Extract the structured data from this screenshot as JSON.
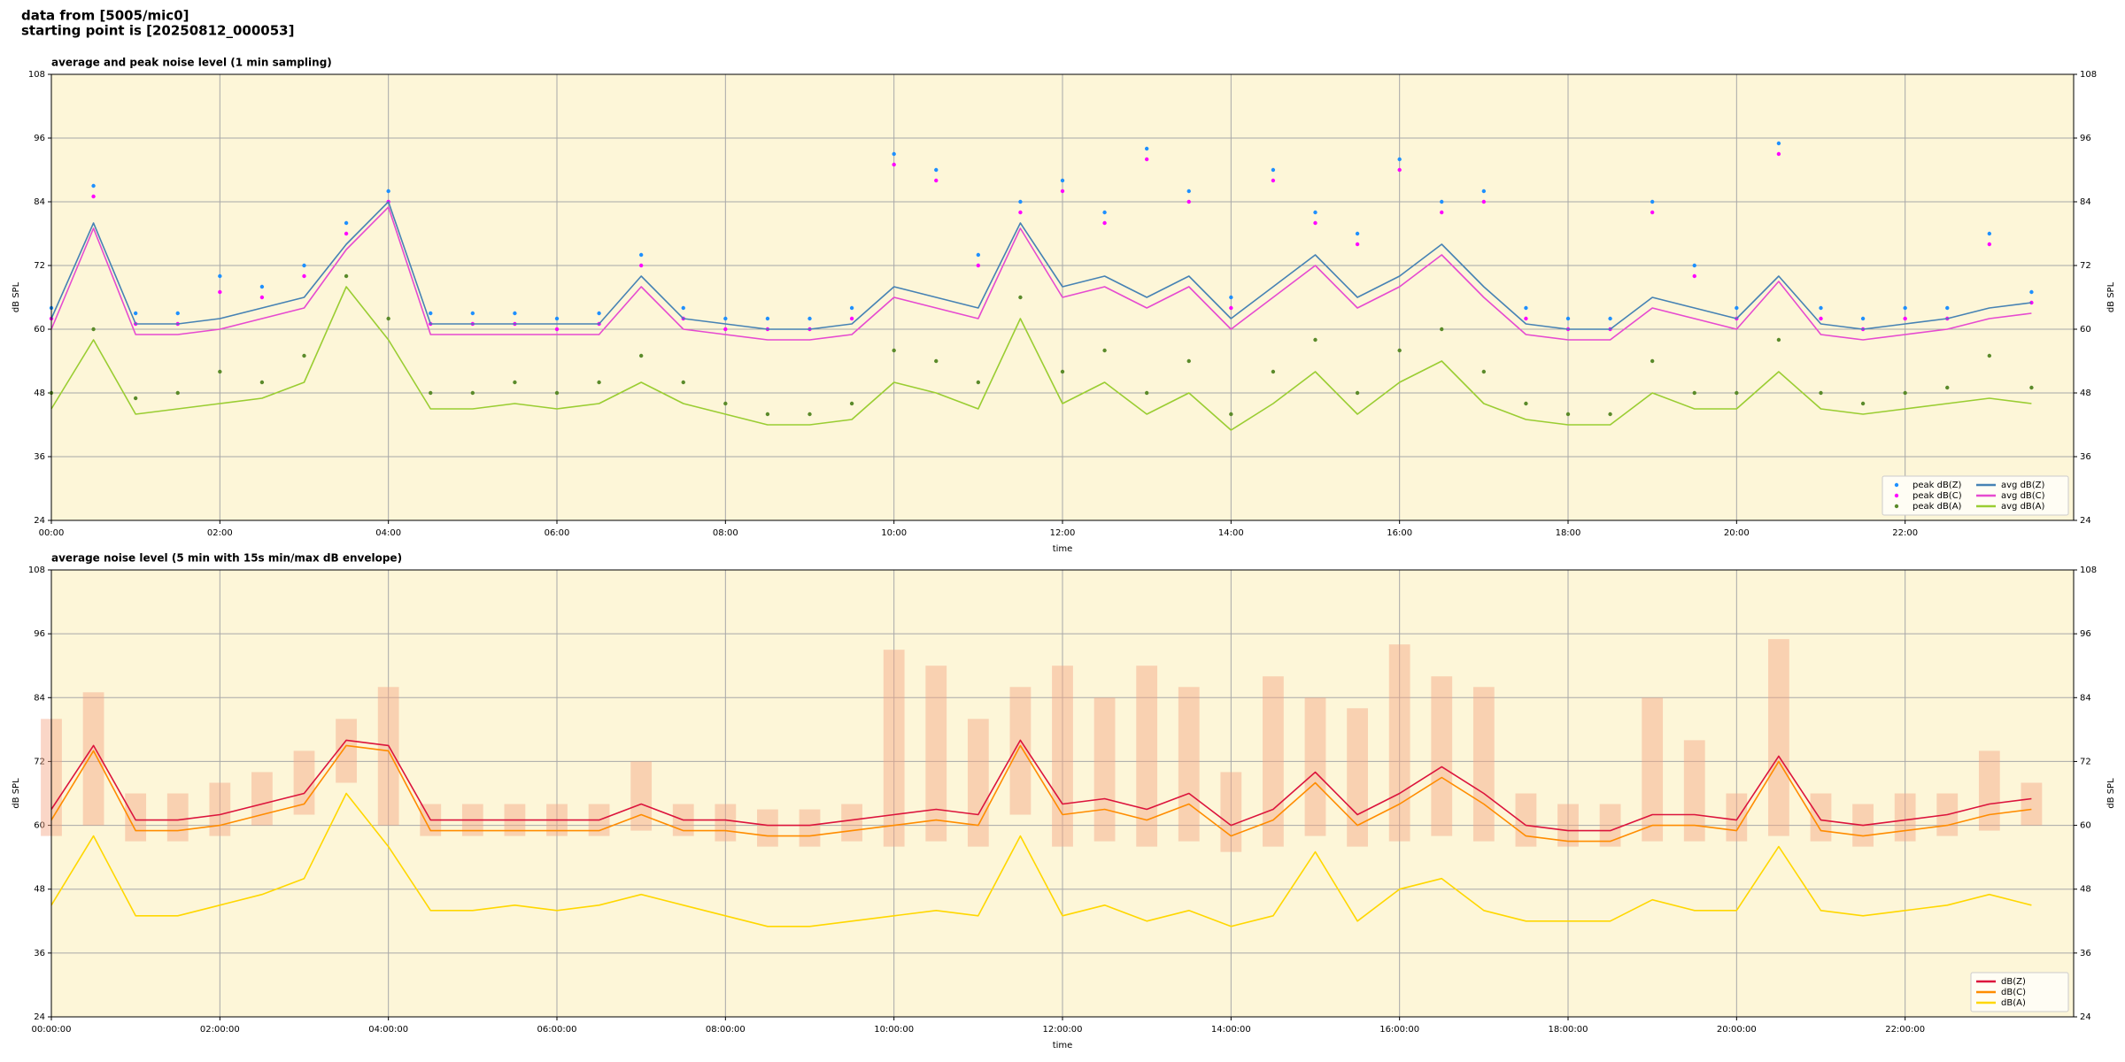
{
  "suptitle": [
    "data from [5005/mic0]",
    "starting point is [20250812_000053]"
  ],
  "chart_data": [
    {
      "type": "line",
      "title": "average and peak noise level (1 min sampling)",
      "x_label": "time",
      "y_label": "dB SPL",
      "xlim": [
        0,
        24
      ],
      "ylim": [
        24,
        108
      ],
      "grid": true,
      "legend": "lower right",
      "background": "#fdf6d8",
      "xticks": [
        {
          "value": 0,
          "label": "00:00"
        },
        {
          "value": 2,
          "label": "02:00"
        },
        {
          "value": 4,
          "label": "04:00"
        },
        {
          "value": 6,
          "label": "06:00"
        },
        {
          "value": 8,
          "label": "08:00"
        },
        {
          "value": 10,
          "label": "10:00"
        },
        {
          "value": 12,
          "label": "12:00"
        },
        {
          "value": 14,
          "label": "14:00"
        },
        {
          "value": 16,
          "label": "16:00"
        },
        {
          "value": 18,
          "label": "18:00"
        },
        {
          "value": 20,
          "label": "20:00"
        },
        {
          "value": 22,
          "label": "22:00"
        }
      ],
      "yticks": [
        24,
        36,
        48,
        60,
        72,
        84,
        96,
        108
      ],
      "x": [
        0,
        0.5,
        1,
        1.5,
        2,
        2.5,
        3,
        3.5,
        4,
        4.5,
        5,
        5.5,
        6,
        6.5,
        7,
        7.5,
        8,
        8.5,
        9,
        9.5,
        10,
        10.5,
        11,
        11.5,
        12,
        12.5,
        13,
        13.5,
        14,
        14.5,
        15,
        15.5,
        16,
        16.5,
        17,
        17.5,
        18,
        18.5,
        19,
        19.5,
        20,
        20.5,
        21,
        21.5,
        22,
        22.5,
        23,
        23.5
      ],
      "series": [
        {
          "name": "peak dB(Z)",
          "style": "scatter",
          "color": "#1e90ff",
          "values": [
            64,
            87,
            63,
            63,
            70,
            68,
            72,
            80,
            86,
            63,
            63,
            63,
            62,
            63,
            74,
            64,
            62,
            62,
            62,
            64,
            93,
            90,
            74,
            84,
            88,
            82,
            94,
            86,
            66,
            90,
            82,
            78,
            92,
            84,
            86,
            64,
            62,
            62,
            84,
            72,
            64,
            95,
            64,
            62,
            64,
            64,
            78,
            67
          ]
        },
        {
          "name": "peak dB(C)",
          "style": "scatter",
          "color": "#ff00ff",
          "values": [
            62,
            85,
            61,
            61,
            67,
            66,
            70,
            78,
            84,
            61,
            61,
            61,
            60,
            61,
            72,
            62,
            60,
            60,
            60,
            62,
            91,
            88,
            72,
            82,
            86,
            80,
            92,
            84,
            64,
            88,
            80,
            76,
            90,
            82,
            84,
            62,
            60,
            60,
            82,
            70,
            62,
            93,
            62,
            60,
            62,
            62,
            76,
            65
          ]
        },
        {
          "name": "peak dB(A)",
          "style": "scatter",
          "color": "#5a8a2a",
          "values": [
            48,
            60,
            47,
            48,
            52,
            50,
            55,
            70,
            62,
            48,
            48,
            50,
            48,
            50,
            55,
            50,
            46,
            44,
            44,
            46,
            56,
            54,
            50,
            66,
            52,
            56,
            48,
            54,
            44,
            52,
            58,
            48,
            56,
            60,
            52,
            46,
            44,
            44,
            54,
            48,
            48,
            58,
            48,
            46,
            48,
            49,
            55,
            49
          ]
        },
        {
          "name": "avg dB(Z)",
          "style": "line",
          "color": "#4682b4",
          "values": [
            62,
            80,
            61,
            61,
            62,
            64,
            66,
            76,
            84,
            61,
            61,
            61,
            61,
            61,
            70,
            62,
            61,
            60,
            60,
            61,
            68,
            66,
            64,
            80,
            68,
            70,
            66,
            70,
            62,
            68,
            74,
            66,
            70,
            76,
            68,
            61,
            60,
            60,
            66,
            64,
            62,
            70,
            61,
            60,
            61,
            62,
            64,
            65
          ]
        },
        {
          "name": "avg dB(C)",
          "style": "line",
          "color": "#e64ad0",
          "values": [
            60,
            79,
            59,
            59,
            60,
            62,
            64,
            75,
            83,
            59,
            59,
            59,
            59,
            59,
            68,
            60,
            59,
            58,
            58,
            59,
            66,
            64,
            62,
            79,
            66,
            68,
            64,
            68,
            60,
            66,
            72,
            64,
            68,
            74,
            66,
            59,
            58,
            58,
            64,
            62,
            60,
            69,
            59,
            58,
            59,
            60,
            62,
            63
          ]
        },
        {
          "name": "avg dB(A)",
          "style": "line",
          "color": "#9acd32",
          "values": [
            45,
            58,
            44,
            45,
            46,
            47,
            50,
            68,
            58,
            45,
            45,
            46,
            45,
            46,
            50,
            46,
            44,
            42,
            42,
            43,
            50,
            48,
            45,
            62,
            46,
            50,
            44,
            48,
            41,
            46,
            52,
            44,
            50,
            54,
            46,
            43,
            42,
            42,
            48,
            45,
            45,
            52,
            45,
            44,
            45,
            46,
            47,
            46
          ]
        }
      ]
    },
    {
      "type": "line",
      "title": "average noise level (5 min with 15s min/max dB envelope)",
      "x_label": "time",
      "y_label": "dB SPL",
      "xlim": [
        0,
        24
      ],
      "ylim": [
        24,
        108
      ],
      "grid": true,
      "legend": "lower right",
      "background": "#fdf6d8",
      "xticks": [
        {
          "value": 0,
          "label": "00:00:00"
        },
        {
          "value": 2,
          "label": "02:00:00"
        },
        {
          "value": 4,
          "label": "04:00:00"
        },
        {
          "value": 6,
          "label": "06:00:00"
        },
        {
          "value": 8,
          "label": "08:00:00"
        },
        {
          "value": 10,
          "label": "10:00:00"
        },
        {
          "value": 12,
          "label": "12:00:00"
        },
        {
          "value": 14,
          "label": "14:00:00"
        },
        {
          "value": 16,
          "label": "16:00:00"
        },
        {
          "value": 18,
          "label": "18:00:00"
        },
        {
          "value": 20,
          "label": "20:00:00"
        },
        {
          "value": 22,
          "label": "22:00:00"
        }
      ],
      "yticks": [
        24,
        36,
        48,
        60,
        72,
        84,
        96,
        108
      ],
      "x": [
        0,
        0.5,
        1,
        1.5,
        2,
        2.5,
        3,
        3.5,
        4,
        4.5,
        5,
        5.5,
        6,
        6.5,
        7,
        7.5,
        8,
        8.5,
        9,
        9.5,
        10,
        10.5,
        11,
        11.5,
        12,
        12.5,
        13,
        13.5,
        14,
        14.5,
        15,
        15.5,
        16,
        16.5,
        17,
        17.5,
        18,
        18.5,
        19,
        19.5,
        20,
        20.5,
        21,
        21.5,
        22,
        22.5,
        23,
        23.5
      ],
      "envelope": {
        "color": "#f4a582",
        "max": [
          80,
          85,
          66,
          66,
          68,
          70,
          74,
          80,
          86,
          64,
          64,
          64,
          64,
          64,
          72,
          64,
          64,
          63,
          63,
          64,
          93,
          90,
          80,
          86,
          90,
          84,
          90,
          86,
          70,
          88,
          84,
          82,
          94,
          88,
          86,
          66,
          64,
          64,
          84,
          76,
          66,
          95,
          66,
          64,
          66,
          66,
          74,
          68
        ],
        "min": [
          58,
          60,
          57,
          57,
          58,
          60,
          62,
          68,
          60,
          58,
          58,
          58,
          58,
          58,
          59,
          58,
          57,
          56,
          56,
          57,
          56,
          57,
          56,
          62,
          56,
          57,
          56,
          57,
          55,
          56,
          58,
          56,
          57,
          58,
          57,
          56,
          56,
          56,
          57,
          57,
          57,
          58,
          57,
          56,
          57,
          58,
          59,
          60
        ]
      },
      "series": [
        {
          "name": "dB(Z)",
          "style": "line",
          "color": "#dc143c",
          "values": [
            63,
            75,
            61,
            61,
            62,
            64,
            66,
            76,
            75,
            61,
            61,
            61,
            61,
            61,
            64,
            61,
            61,
            60,
            60,
            61,
            62,
            63,
            62,
            76,
            64,
            65,
            63,
            66,
            60,
            63,
            70,
            62,
            66,
            71,
            66,
            60,
            59,
            59,
            62,
            62,
            61,
            73,
            61,
            60,
            61,
            62,
            64,
            65
          ]
        },
        {
          "name": "dB(C)",
          "style": "line",
          "color": "#ff8c00",
          "values": [
            61,
            74,
            59,
            59,
            60,
            62,
            64,
            75,
            74,
            59,
            59,
            59,
            59,
            59,
            62,
            59,
            59,
            58,
            58,
            59,
            60,
            61,
            60,
            75,
            62,
            63,
            61,
            64,
            58,
            61,
            68,
            60,
            64,
            69,
            64,
            58,
            57,
            57,
            60,
            60,
            59,
            72,
            59,
            58,
            59,
            60,
            62,
            63
          ]
        },
        {
          "name": "dB(A)",
          "style": "line",
          "color": "#ffd700",
          "values": [
            45,
            58,
            43,
            43,
            45,
            47,
            50,
            66,
            56,
            44,
            44,
            45,
            44,
            45,
            47,
            45,
            43,
            41,
            41,
            42,
            43,
            44,
            43,
            58,
            43,
            45,
            42,
            44,
            41,
            43,
            55,
            42,
            48,
            50,
            44,
            42,
            42,
            42,
            46,
            44,
            44,
            56,
            44,
            43,
            44,
            45,
            47,
            45
          ]
        }
      ]
    }
  ]
}
